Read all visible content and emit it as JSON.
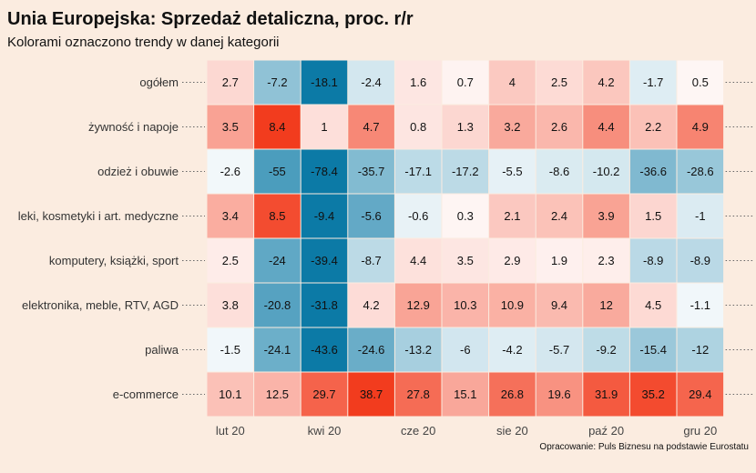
{
  "chart_data": {
    "type": "heatmap",
    "title": "Unia Europejska: Sprzedaż detaliczna, proc. r/r",
    "subtitle": "Kolorami oznaczono trendy w danej kategorii",
    "source": "Opracowanie: Puls Biznesu na podstawie Eurostatu",
    "rows": [
      "ogółem",
      "żywność i napoje",
      "odzież i obuwie",
      "leki, kosmetyki i art. medyczne",
      "komputery, książki, sport",
      "elektronika, meble, RTV, AGD",
      "paliwa",
      "e-commerce"
    ],
    "x_tick_labels": [
      "lut 20",
      "",
      "kwi 20",
      "",
      "cze 20",
      "",
      "sie 20",
      "",
      "paź 20",
      "",
      "gru 20"
    ],
    "values": [
      [
        2.7,
        -7.2,
        -18.1,
        -2.4,
        1.6,
        0.7,
        4,
        2.5,
        4.2,
        -1.7,
        0.5
      ],
      [
        3.5,
        8.4,
        1,
        4.7,
        0.8,
        1.3,
        3.2,
        2.6,
        4.4,
        2.2,
        4.9
      ],
      [
        -2.6,
        -55,
        -78.4,
        -35.7,
        -17.1,
        -17.2,
        -5.5,
        -8.6,
        -10.2,
        -36.6,
        -28.6
      ],
      [
        3.4,
        8.5,
        -9.4,
        -5.6,
        -0.6,
        0.3,
        2.1,
        2.4,
        3.9,
        1.5,
        -1
      ],
      [
        2.5,
        -24,
        -39.4,
        -8.7,
        4.4,
        3.5,
        2.9,
        1.9,
        2.3,
        -8.9,
        -8.9
      ],
      [
        3.8,
        -20.8,
        -31.8,
        4.2,
        12.9,
        10.3,
        10.9,
        9.4,
        12,
        4.5,
        -1.1
      ],
      [
        -1.5,
        -24.1,
        -43.6,
        -24.6,
        -13.2,
        -6,
        -4.2,
        -5.7,
        -9.2,
        -15.4,
        -12
      ],
      [
        10.1,
        12.5,
        29.7,
        38.7,
        27.8,
        15.1,
        26.8,
        19.6,
        31.9,
        35.2,
        29.4
      ]
    ],
    "colors": {
      "background": "#fbece0",
      "low": "#0c7aa6",
      "mid": "#ffffff",
      "high": "#f23c1e"
    },
    "grid": false,
    "legend": "none"
  }
}
